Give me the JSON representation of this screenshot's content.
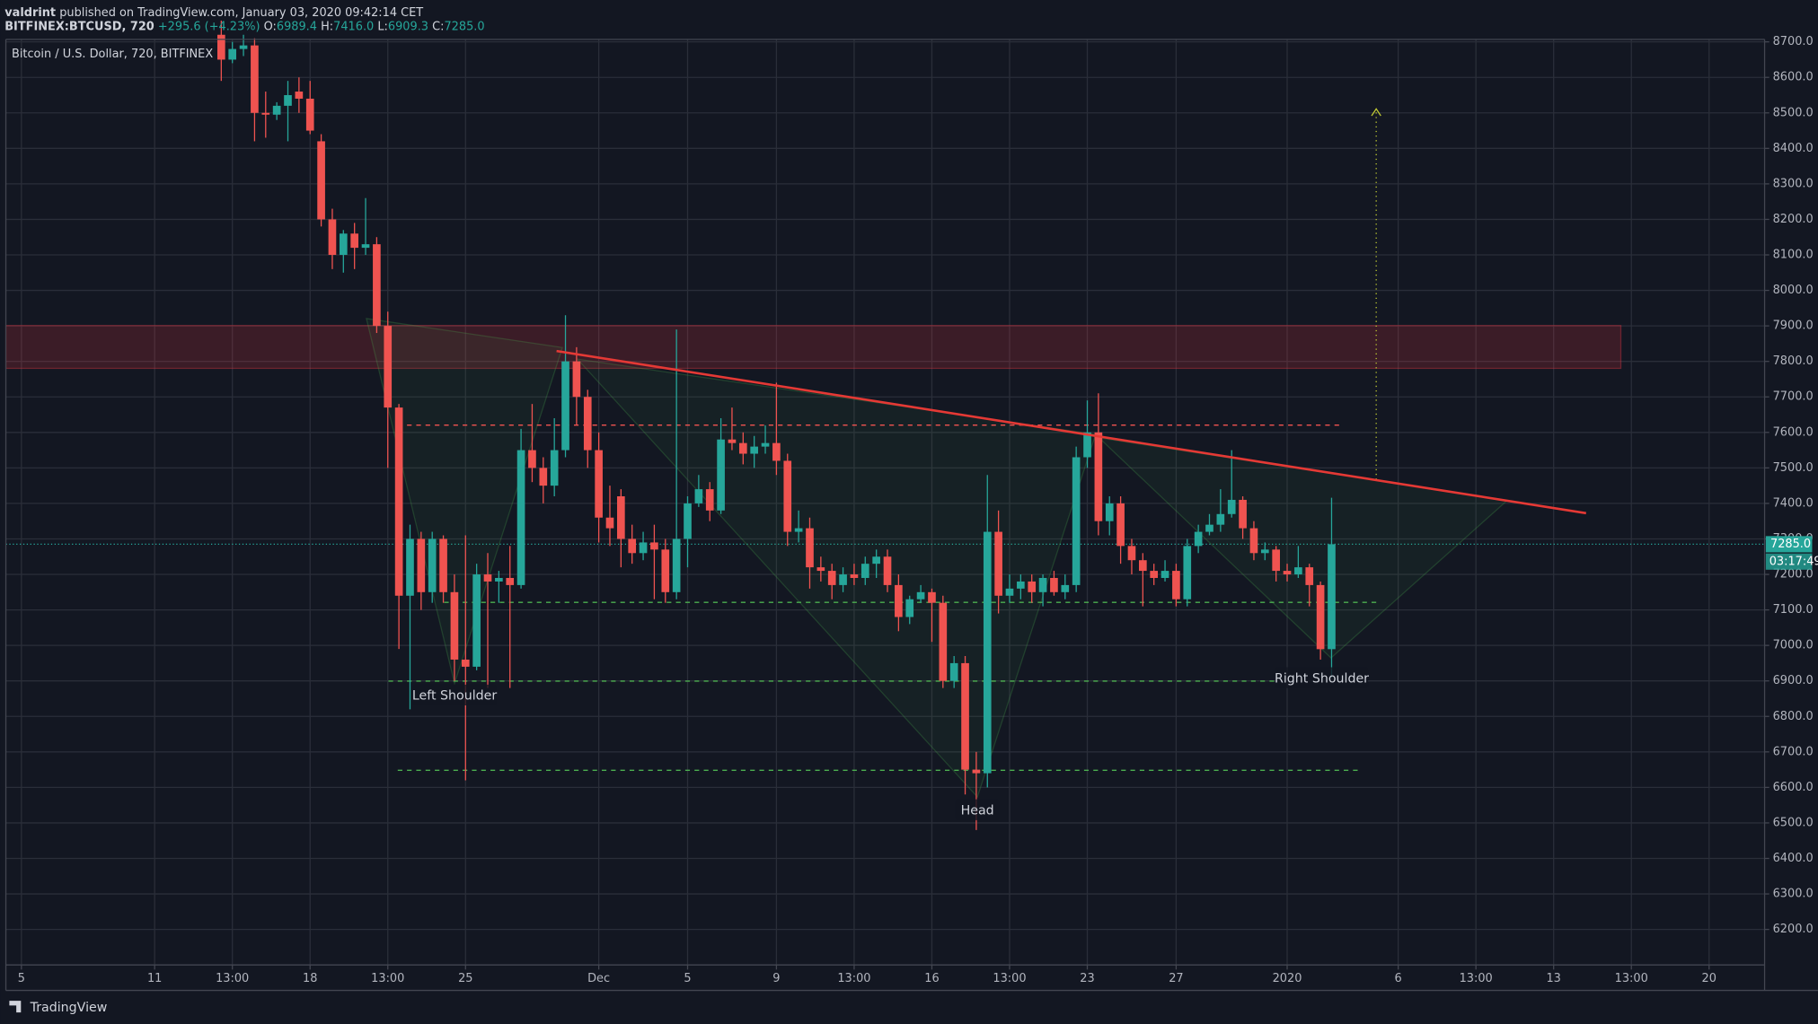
{
  "header": {
    "author": "valdrint",
    "published": "published on TradingView.com, January 03, 2020 09:42:14 CET",
    "symbol": "BITFINEX:BTCUSD, 720",
    "change": "+295.6 (+4.23%)",
    "ohlc": [
      {
        "label": "O:",
        "value": "6989.4"
      },
      {
        "label": "H:",
        "value": "7416.0"
      },
      {
        "label": "L:",
        "value": "6909.3"
      },
      {
        "label": "C:",
        "value": "7285.0"
      }
    ]
  },
  "chart_data": {
    "type": "candlestick",
    "title": "Bitcoin / U.S. Dollar, 720, BITFINEX",
    "up_color": "#26a69a",
    "down_color": "#ef5350",
    "grid": true,
    "xlim": [
      4.3,
      83.5
    ],
    "ylim": [
      6100,
      8707
    ],
    "xticks": [
      5,
      11,
      {
        "value": 14.5,
        "label": "13:00"
      },
      18,
      {
        "value": 21.5,
        "label": "13:00"
      },
      25,
      {
        "value": 31,
        "label": "Dec"
      },
      {
        "value": 35,
        "label": "5"
      },
      {
        "value": 39,
        "label": "9"
      },
      {
        "value": 42.5,
        "label": "13:00"
      },
      {
        "value": 46,
        "label": "16"
      },
      {
        "value": 49.5,
        "label": "13:00"
      },
      {
        "value": 53,
        "label": "23"
      },
      {
        "value": 57,
        "label": "27"
      },
      {
        "value": 62,
        "label": "2020"
      },
      {
        "value": 67,
        "label": "6"
      },
      {
        "value": 70.5,
        "label": "13:00"
      },
      {
        "value": 74,
        "label": "13"
      },
      {
        "value": 77.5,
        "label": "13:00"
      },
      {
        "value": 81,
        "label": "20"
      }
    ],
    "yticks": [
      {
        "value": 6200,
        "label": "6200.0"
      },
      {
        "value": 6300,
        "label": "6300.0"
      },
      {
        "value": 6400,
        "label": "6400.0"
      },
      {
        "value": 6500,
        "label": "6500.0"
      },
      {
        "value": 6600,
        "label": "6600.0"
      },
      {
        "value": 6700,
        "label": "6700.0"
      },
      {
        "value": 6800,
        "label": "6800.0"
      },
      {
        "value": 6900,
        "label": "6900.0"
      },
      {
        "value": 7000,
        "label": "7000.0"
      },
      {
        "value": 7100,
        "label": "7100.0"
      },
      {
        "value": 7200,
        "label": "7200.0"
      },
      {
        "value": 7300,
        "label": "7300.0"
      },
      {
        "value": 7400,
        "label": "7400.0"
      },
      {
        "value": 7500,
        "label": "7500.0"
      },
      {
        "value": 7600,
        "label": "7600.0"
      },
      {
        "value": 7700,
        "label": "7700.0"
      },
      {
        "value": 7800,
        "label": "7800.0"
      },
      {
        "value": 7900,
        "label": "7900.0"
      },
      {
        "value": 8000,
        "label": "8000.0"
      },
      {
        "value": 8100,
        "label": "8100.0"
      },
      {
        "value": 8200,
        "label": "8200.0"
      },
      {
        "value": 8300,
        "label": "8300.0"
      },
      {
        "value": 8400,
        "label": "8400.0"
      },
      {
        "value": 8500,
        "label": "8500.0"
      },
      {
        "value": 8600,
        "label": "8600.0"
      },
      {
        "value": 8700,
        "label": "8700.0"
      }
    ],
    "x": [
      14,
      14.5,
      15,
      15.5,
      16,
      16.5,
      17,
      17.5,
      18,
      18.5,
      19,
      19.5,
      20,
      20.5,
      21,
      21.5,
      22,
      22.5,
      23,
      23.5,
      24,
      24.5,
      25,
      25.5,
      26,
      26.5,
      27,
      27.5,
      28,
      28.5,
      29,
      29.5,
      30,
      30.5,
      31,
      31.5,
      32,
      32.5,
      33,
      33.5,
      34,
      34.5,
      35,
      35.5,
      36,
      36.5,
      37,
      37.5,
      38,
      38.5,
      39,
      39.5,
      40,
      40.5,
      41,
      41.5,
      42,
      42.5,
      43,
      43.5,
      44,
      44.5,
      45,
      45.5,
      46,
      46.5,
      47,
      47.5,
      48,
      48.5,
      49,
      49.5,
      50,
      50.5,
      51,
      51.5,
      52,
      52.5,
      53,
      53.5,
      54,
      54.5,
      55,
      55.5,
      56,
      56.5,
      57,
      57.5,
      58,
      58.5,
      59,
      59.5,
      60,
      60.5,
      61,
      61.5,
      62,
      62.5,
      63,
      63.5,
      64
    ],
    "candles": [
      [
        8720,
        8760,
        8590,
        8650
      ],
      [
        8650,
        8700,
        8640,
        8680
      ],
      [
        8680,
        8720,
        8660,
        8690
      ],
      [
        8690,
        8710,
        8420,
        8500
      ],
      [
        8500,
        8560,
        8430,
        8495
      ],
      [
        8495,
        8530,
        8480,
        8520
      ],
      [
        8520,
        8590,
        8420,
        8550
      ],
      [
        8560,
        8600,
        8500,
        8540
      ],
      [
        8540,
        8590,
        8440,
        8450
      ],
      [
        8420,
        8440,
        8180,
        8200
      ],
      [
        8200,
        8230,
        8060,
        8100
      ],
      [
        8100,
        8170,
        8050,
        8160
      ],
      [
        8160,
        8190,
        8060,
        8120
      ],
      [
        8120,
        8260,
        8100,
        8130
      ],
      [
        8130,
        8150,
        7880,
        7900
      ],
      [
        7900,
        7940,
        7500,
        7670
      ],
      [
        7670,
        7680,
        6990,
        7140
      ],
      [
        7140,
        7340,
        6820,
        7300
      ],
      [
        7300,
        7320,
        7100,
        7150
      ],
      [
        7150,
        7320,
        7120,
        7300
      ],
      [
        7300,
        7310,
        7120,
        7150
      ],
      [
        7150,
        7200,
        6900,
        6960
      ],
      [
        6960,
        7310,
        6620,
        6940
      ],
      [
        6940,
        7230,
        6930,
        7200
      ],
      [
        7200,
        7260,
        6880,
        7180
      ],
      [
        7180,
        7210,
        7120,
        7190
      ],
      [
        7190,
        7280,
        6880,
        7170
      ],
      [
        7170,
        7610,
        7160,
        7550
      ],
      [
        7550,
        7680,
        7460,
        7500
      ],
      [
        7500,
        7530,
        7400,
        7450
      ],
      [
        7450,
        7640,
        7420,
        7550
      ],
      [
        7550,
        7930,
        7530,
        7800
      ],
      [
        7800,
        7840,
        7620,
        7700
      ],
      [
        7700,
        7720,
        7500,
        7550
      ],
      [
        7550,
        7600,
        7290,
        7360
      ],
      [
        7360,
        7450,
        7280,
        7330
      ],
      [
        7420,
        7440,
        7220,
        7300
      ],
      [
        7300,
        7340,
        7230,
        7260
      ],
      [
        7260,
        7320,
        7240,
        7290
      ],
      [
        7290,
        7340,
        7130,
        7270
      ],
      [
        7270,
        7300,
        7120,
        7150
      ],
      [
        7150,
        7890,
        7130,
        7300
      ],
      [
        7300,
        7420,
        7220,
        7400
      ],
      [
        7400,
        7480,
        7390,
        7440
      ],
      [
        7440,
        7460,
        7350,
        7380
      ],
      [
        7380,
        7640,
        7370,
        7580
      ],
      [
        7580,
        7670,
        7550,
        7570
      ],
      [
        7570,
        7600,
        7510,
        7540
      ],
      [
        7540,
        7590,
        7500,
        7560
      ],
      [
        7560,
        7620,
        7540,
        7570
      ],
      [
        7570,
        7740,
        7480,
        7520
      ],
      [
        7520,
        7540,
        7280,
        7320
      ],
      [
        7320,
        7380,
        7290,
        7330
      ],
      [
        7330,
        7360,
        7160,
        7220
      ],
      [
        7220,
        7250,
        7180,
        7210
      ],
      [
        7210,
        7230,
        7130,
        7170
      ],
      [
        7170,
        7220,
        7150,
        7200
      ],
      [
        7200,
        7230,
        7170,
        7190
      ],
      [
        7190,
        7250,
        7170,
        7230
      ],
      [
        7230,
        7270,
        7190,
        7250
      ],
      [
        7250,
        7270,
        7150,
        7170
      ],
      [
        7170,
        7200,
        7040,
        7080
      ],
      [
        7080,
        7140,
        7060,
        7130
      ],
      [
        7130,
        7170,
        7120,
        7150
      ],
      [
        7150,
        7160,
        7010,
        7120
      ],
      [
        7120,
        7140,
        6880,
        6900
      ],
      [
        6900,
        6970,
        6880,
        6950
      ],
      [
        6950,
        6970,
        6580,
        6650
      ],
      [
        6650,
        6700,
        6480,
        6640
      ],
      [
        6640,
        7480,
        6600,
        7320
      ],
      [
        7320,
        7380,
        7090,
        7140
      ],
      [
        7140,
        7200,
        7120,
        7160
      ],
      [
        7160,
        7200,
        7130,
        7180
      ],
      [
        7180,
        7200,
        7120,
        7150
      ],
      [
        7150,
        7200,
        7110,
        7190
      ],
      [
        7190,
        7210,
        7140,
        7150
      ],
      [
        7150,
        7200,
        7130,
        7170
      ],
      [
        7170,
        7560,
        7150,
        7530
      ],
      [
        7530,
        7690,
        7500,
        7600
      ],
      [
        7600,
        7710,
        7310,
        7350
      ],
      [
        7350,
        7420,
        7310,
        7400
      ],
      [
        7400,
        7420,
        7230,
        7280
      ],
      [
        7280,
        7300,
        7200,
        7240
      ],
      [
        7240,
        7260,
        7110,
        7210
      ],
      [
        7210,
        7230,
        7170,
        7190
      ],
      [
        7190,
        7240,
        7180,
        7210
      ],
      [
        7210,
        7230,
        7110,
        7130
      ],
      [
        7130,
        7300,
        7110,
        7280
      ],
      [
        7280,
        7340,
        7260,
        7320
      ],
      [
        7320,
        7370,
        7310,
        7340
      ],
      [
        7340,
        7440,
        7320,
        7370
      ],
      [
        7370,
        7550,
        7360,
        7410
      ],
      [
        7410,
        7420,
        7300,
        7330
      ],
      [
        7330,
        7350,
        7240,
        7260
      ],
      [
        7260,
        7290,
        7240,
        7270
      ],
      [
        7270,
        7280,
        7180,
        7210
      ],
      [
        7210,
        7230,
        7180,
        7200
      ],
      [
        7200,
        7280,
        7190,
        7220
      ],
      [
        7220,
        7230,
        7110,
        7170
      ],
      [
        7170,
        7180,
        6960,
        6989.4
      ],
      [
        6989.4,
        7416,
        6909.3,
        7285
      ]
    ],
    "annotations": [
      "Left Shoulder",
      "Head",
      "Right Shoulder"
    ],
    "last_price_label": "7285.0",
    "countdown": "03:17:49"
  },
  "footer": "TradingView"
}
